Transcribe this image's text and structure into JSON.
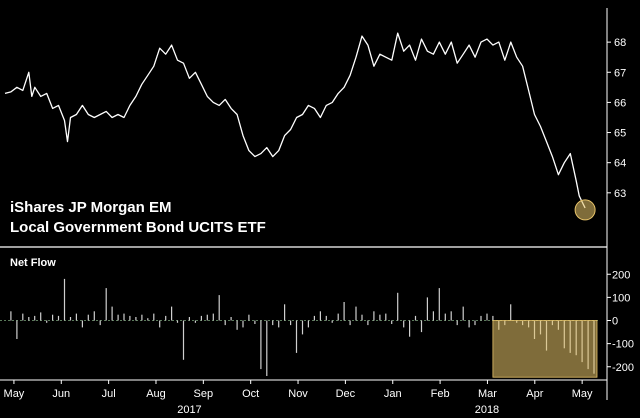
{
  "chart_data": [
    {
      "type": "line",
      "title_lines": [
        "iShares JP Morgan EM",
        "Local Government Bond UCITS ETF"
      ],
      "ylim": [
        61.6,
        69
      ],
      "yticks": [
        "63",
        "64",
        "65",
        "66",
        "67",
        "68"
      ],
      "xlim": [
        0,
        100
      ],
      "line_color": "#ffffff",
      "highlight_color": "#e8c46a",
      "series": [
        {
          "values": [
            [
              0,
              66.3
            ],
            [
              1,
              66.35
            ],
            [
              2,
              66.5
            ],
            [
              3,
              66.4
            ],
            [
              4,
              67.0
            ],
            [
              4.5,
              66.2
            ],
            [
              5,
              66.5
            ],
            [
              6,
              66.2
            ],
            [
              7,
              66.3
            ],
            [
              8,
              65.8
            ],
            [
              9,
              65.9
            ],
            [
              10,
              65.4
            ],
            [
              10.5,
              64.7
            ],
            [
              11,
              65.5
            ],
            [
              12,
              65.6
            ],
            [
              13,
              65.9
            ],
            [
              14,
              65.6
            ],
            [
              15,
              65.5
            ],
            [
              16,
              65.6
            ],
            [
              17,
              65.7
            ],
            [
              18,
              65.5
            ],
            [
              19,
              65.6
            ],
            [
              20,
              65.5
            ],
            [
              21,
              65.9
            ],
            [
              22,
              66.2
            ],
            [
              23,
              66.6
            ],
            [
              24,
              66.9
            ],
            [
              25,
              67.2
            ],
            [
              26,
              67.8
            ],
            [
              27,
              67.6
            ],
            [
              28,
              67.9
            ],
            [
              29,
              67.4
            ],
            [
              30,
              67.3
            ],
            [
              31,
              66.8
            ],
            [
              32,
              67.0
            ],
            [
              33,
              66.6
            ],
            [
              34,
              66.2
            ],
            [
              35,
              66.0
            ],
            [
              36,
              65.9
            ],
            [
              37,
              66.1
            ],
            [
              38,
              65.8
            ],
            [
              39,
              65.6
            ],
            [
              40,
              64.9
            ],
            [
              41,
              64.4
            ],
            [
              42,
              64.2
            ],
            [
              43,
              64.3
            ],
            [
              44,
              64.5
            ],
            [
              45,
              64.2
            ],
            [
              46,
              64.4
            ],
            [
              47,
              64.9
            ],
            [
              48,
              65.1
            ],
            [
              49,
              65.5
            ],
            [
              50,
              65.6
            ],
            [
              51,
              65.9
            ],
            [
              52,
              65.8
            ],
            [
              53,
              65.5
            ],
            [
              54,
              65.9
            ],
            [
              55,
              66.0
            ],
            [
              56,
              66.3
            ],
            [
              57,
              66.5
            ],
            [
              58,
              66.9
            ],
            [
              59,
              67.5
            ],
            [
              60,
              68.2
            ],
            [
              61,
              67.9
            ],
            [
              62,
              67.2
            ],
            [
              63,
              67.6
            ],
            [
              64,
              67.5
            ],
            [
              65,
              67.4
            ],
            [
              66,
              68.3
            ],
            [
              67,
              67.7
            ],
            [
              68,
              67.9
            ],
            [
              69,
              67.4
            ],
            [
              70,
              68.1
            ],
            [
              71,
              67.7
            ],
            [
              72,
              67.6
            ],
            [
              73,
              68.0
            ],
            [
              74,
              67.6
            ],
            [
              75,
              68.0
            ],
            [
              76,
              67.3
            ],
            [
              77,
              67.6
            ],
            [
              78,
              67.9
            ],
            [
              79,
              67.5
            ],
            [
              80,
              68.0
            ],
            [
              81,
              68.1
            ],
            [
              82,
              67.9
            ],
            [
              83,
              68.0
            ],
            [
              84,
              67.4
            ],
            [
              85,
              68.0
            ],
            [
              86,
              67.5
            ],
            [
              87,
              67.2
            ],
            [
              88,
              66.4
            ],
            [
              89,
              65.6
            ],
            [
              90,
              65.2
            ],
            [
              91,
              64.7
            ],
            [
              92,
              64.2
            ],
            [
              93,
              63.6
            ],
            [
              94,
              64.0
            ],
            [
              95,
              64.3
            ],
            [
              96,
              63.4
            ],
            [
              96.5,
              62.9
            ],
            [
              97,
              62.7
            ],
            [
              97.5,
              62.5
            ]
          ]
        }
      ]
    },
    {
      "type": "bar",
      "title": "Net Flow",
      "ylim": [
        -240,
        240
      ],
      "yticks": [
        "200",
        "100",
        "0",
        "-100",
        "-200"
      ],
      "xlim": [
        0,
        100
      ],
      "bar_color": "#cfcfcf",
      "highlight_color": "#e8c46a",
      "x_tick_labels": [
        "May",
        "Jun",
        "Jul",
        "Aug",
        "Sep",
        "Oct",
        "Nov",
        "Dec",
        "Jan",
        "Feb",
        "Mar",
        "Apr",
        "May"
      ],
      "x_year_labels": [
        "2017",
        "2018"
      ],
      "bars": [
        [
          1,
          40
        ],
        [
          2,
          -80
        ],
        [
          3,
          30
        ],
        [
          4,
          15
        ],
        [
          5,
          20
        ],
        [
          6,
          35
        ],
        [
          7,
          -10
        ],
        [
          8,
          25
        ],
        [
          9,
          20
        ],
        [
          10,
          180
        ],
        [
          11,
          15
        ],
        [
          12,
          30
        ],
        [
          13,
          -30
        ],
        [
          14,
          25
        ],
        [
          15,
          40
        ],
        [
          16,
          -20
        ],
        [
          17,
          140
        ],
        [
          18,
          60
        ],
        [
          19,
          25
        ],
        [
          20,
          30
        ],
        [
          21,
          20
        ],
        [
          22,
          15
        ],
        [
          23,
          25
        ],
        [
          24,
          10
        ],
        [
          25,
          30
        ],
        [
          26,
          -30
        ],
        [
          27,
          20
        ],
        [
          28,
          60
        ],
        [
          29,
          -10
        ],
        [
          30,
          -170
        ],
        [
          31,
          15
        ],
        [
          32,
          -10
        ],
        [
          33,
          20
        ],
        [
          34,
          25
        ],
        [
          35,
          30
        ],
        [
          36,
          110
        ],
        [
          37,
          -20
        ],
        [
          38,
          15
        ],
        [
          39,
          -40
        ],
        [
          40,
          -30
        ],
        [
          41,
          25
        ],
        [
          42,
          -15
        ],
        [
          43,
          -210
        ],
        [
          44,
          -240
        ],
        [
          45,
          -20
        ],
        [
          46,
          -30
        ],
        [
          47,
          70
        ],
        [
          48,
          -20
        ],
        [
          49,
          -140
        ],
        [
          50,
          -60
        ],
        [
          51,
          -30
        ],
        [
          52,
          20
        ],
        [
          53,
          40
        ],
        [
          54,
          20
        ],
        [
          55,
          -10
        ],
        [
          56,
          30
        ],
        [
          57,
          80
        ],
        [
          58,
          -20
        ],
        [
          59,
          60
        ],
        [
          60,
          25
        ],
        [
          61,
          -20
        ],
        [
          62,
          40
        ],
        [
          63,
          25
        ],
        [
          64,
          30
        ],
        [
          65,
          -15
        ],
        [
          66,
          120
        ],
        [
          67,
          -30
        ],
        [
          68,
          -70
        ],
        [
          69,
          20
        ],
        [
          70,
          -50
        ],
        [
          71,
          100
        ],
        [
          72,
          40
        ],
        [
          73,
          140
        ],
        [
          74,
          30
        ],
        [
          75,
          40
        ],
        [
          76,
          -20
        ],
        [
          77,
          60
        ],
        [
          78,
          -30
        ],
        [
          79,
          -20
        ],
        [
          80,
          20
        ],
        [
          81,
          30
        ],
        [
          82,
          20
        ],
        [
          83,
          -40
        ],
        [
          84,
          -20
        ],
        [
          85,
          70
        ],
        [
          86,
          -10
        ],
        [
          87,
          -20
        ],
        [
          88,
          -30
        ],
        [
          89,
          -80
        ],
        [
          90,
          -60
        ],
        [
          91,
          -130
        ],
        [
          92,
          -20
        ],
        [
          93,
          -40
        ],
        [
          94,
          -120
        ],
        [
          95,
          -140
        ],
        [
          96,
          -150
        ],
        [
          97,
          -180
        ],
        [
          98,
          -210
        ],
        [
          99,
          -230
        ]
      ]
    }
  ]
}
